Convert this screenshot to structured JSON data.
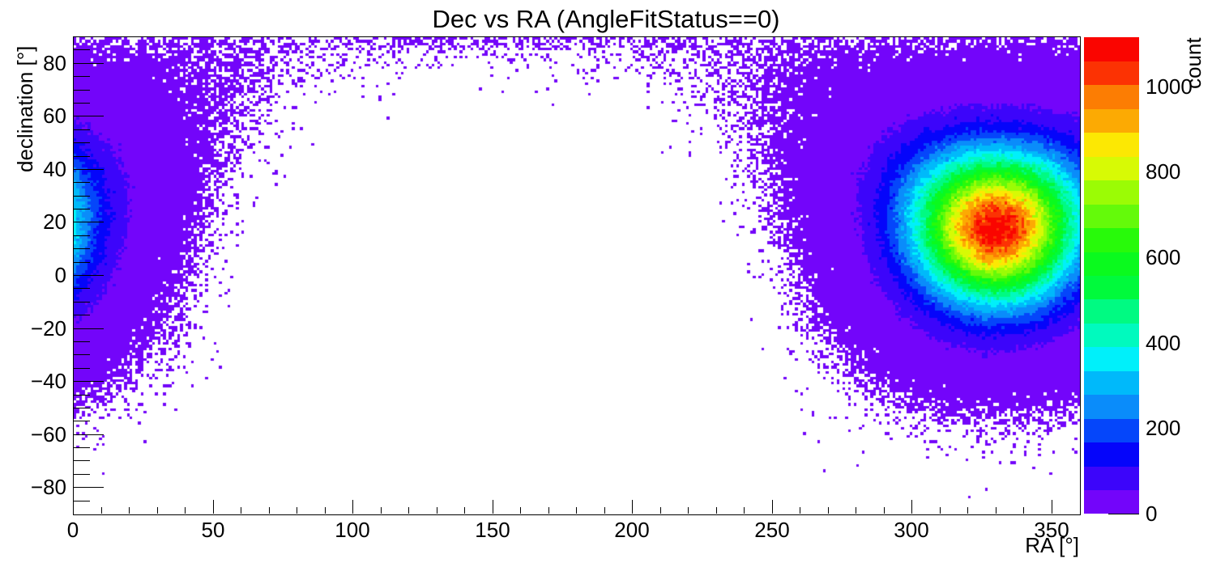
{
  "chart_data": {
    "type": "heatmap",
    "title": "Dec vs RA (AngleFitStatus==0)",
    "xlabel": "RA [°]",
    "ylabel": "declination [°]",
    "zlabel": "count",
    "x_range": [
      0,
      360
    ],
    "y_range": [
      -90,
      90
    ],
    "z_range": [
      0,
      1115
    ],
    "x_major_ticks": [
      0,
      50,
      100,
      150,
      200,
      250,
      300,
      350
    ],
    "x_minor_step": 10,
    "y_major_ticks": [
      80,
      60,
      40,
      20,
      0,
      -20,
      -40,
      -60,
      -80
    ],
    "y_minor_step": 5,
    "z_major_ticks": [
      0,
      200,
      400,
      600,
      800,
      1000
    ],
    "n_color_levels": 20,
    "palette": [
      "#7305fa",
      "#3c05fa",
      "#0505fa",
      "#0546fa",
      "#0a8cfa",
      "#00b9fa",
      "#00f0fa",
      "#00fabe",
      "#00fa82",
      "#00fa3c",
      "#0afa1e",
      "#28fa0a",
      "#64fa0a",
      "#9bfc05",
      "#d7fa05",
      "#fce803",
      "#fcaa03",
      "#fc7d03",
      "#fc3203",
      "#fa0500"
    ],
    "zero_bin_color": "#ffffff",
    "bins": {
      "nx": 360,
      "ny": 180,
      "bin_width_deg": 1,
      "bin_height_deg": 1
    },
    "distribution": {
      "model": "spherical_gaussian_poisson",
      "source_ra_deg": 330,
      "source_dec_deg": 18,
      "peak_count": 1100,
      "sigma_deg": 19,
      "description": "Bin count = peak_count * exp(-d^2 / (2*sigma^2)) with Poisson fluctuations, where d is the great-circle angular distance from the source; empty (0) bins are white."
    },
    "hotspots": [
      {
        "ra_deg": 330,
        "dec_deg": 18,
        "peak_count": 1100,
        "appearance": "red core surrounded by rainbow rings"
      },
      {
        "ra_deg": 0,
        "dec_deg": 18,
        "peak_count": 380,
        "appearance": "cyan/blue half-blob at left edge (wrap-around of the main source across RA 360/0)"
      }
    ],
    "empty_region": "white void centered near RA 150, dec -18 (antipode of source)",
    "grid": false,
    "legend_position": "colorbar at right",
    "frame_color": "#000000",
    "background_color": "#ffffff"
  }
}
